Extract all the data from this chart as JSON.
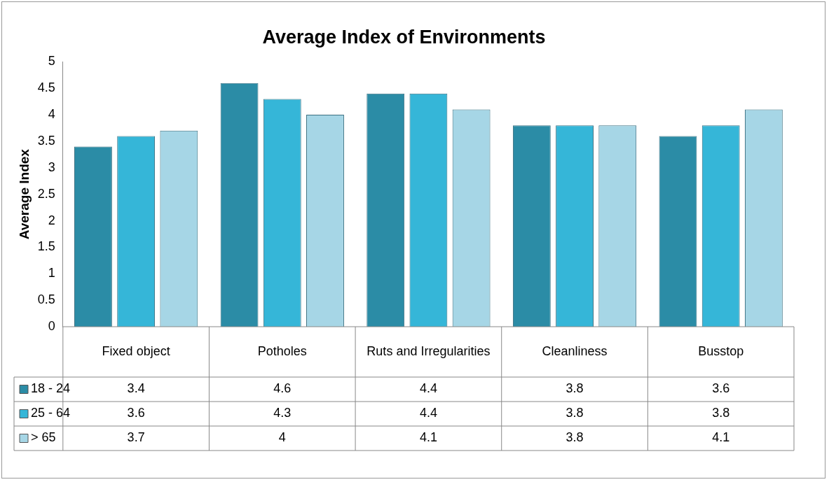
{
  "chart_data": {
    "type": "bar",
    "title": "Average Index of Environments",
    "ylabel": "Average Index",
    "categories": [
      "Fixed object",
      "Potholes",
      "Ruts and Irregularities",
      "Cleanliness",
      "Busstop"
    ],
    "series": [
      {
        "name": "18 - 24",
        "color": "#2b8ca6",
        "values": [
          3.4,
          4.6,
          4.4,
          3.8,
          3.6
        ]
      },
      {
        "name": "25 - 64",
        "color": "#35b6d8",
        "values": [
          3.6,
          4.3,
          4.4,
          3.8,
          3.8
        ]
      },
      {
        "name": "> 65",
        "color": "#a6d6e6",
        "values": [
          3.7,
          4,
          4.1,
          3.8,
          4.1
        ]
      }
    ],
    "ylim": [
      0,
      5
    ],
    "yticks": [
      0,
      0.5,
      1,
      1.5,
      2,
      2.5,
      3,
      3.5,
      4,
      4.5,
      5
    ],
    "grid": false,
    "legend": "bottom",
    "data_labels": true
  }
}
